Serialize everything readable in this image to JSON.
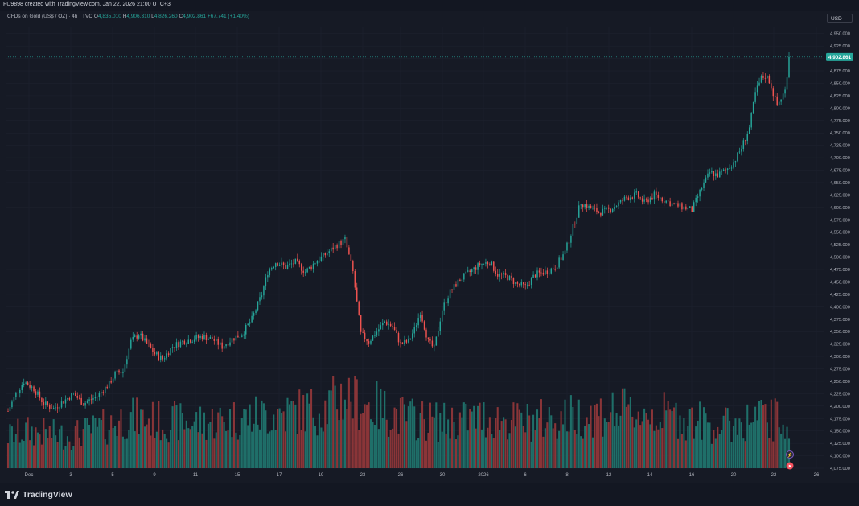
{
  "header": {
    "created_text": "FU9898 created with TradingView.com, Jan 22, 2026 21:00 UTC+3"
  },
  "legend": {
    "symbol": "CFDs on Gold (US$ / OZ) · 4h · TVC",
    "open_label": "O",
    "open": "4,835.010",
    "high_label": "H",
    "high": "4,906.310",
    "low_label": "L",
    "low": "4,826.260",
    "close_label": "C",
    "close": "4,902.861",
    "change": "+67.741 (+1.40%)"
  },
  "currency_button": "USD",
  "footer": {
    "brand": "TradingView"
  },
  "colors": {
    "up": "#26a69a",
    "down": "#ef5350",
    "vol_up": "#1f6f69",
    "vol_down": "#8a3538",
    "bg": "#161a25",
    "grid": "#1f2330",
    "axis_text": "#b2b5be"
  },
  "chart_data": {
    "type": "candlestick",
    "interval": "4h",
    "ylim": [
      4075,
      4962.5
    ],
    "y_ticks": [
      "4,950.000",
      "4,925.000",
      "4,900.000",
      "4,875.000",
      "4,850.000",
      "4,825.000",
      "4,800.000",
      "4,775.000",
      "4,750.000",
      "4,725.000",
      "4,700.000",
      "4,675.000",
      "4,650.000",
      "4,625.000",
      "4,600.000",
      "4,575.000",
      "4,550.000",
      "4,525.000",
      "4,500.000",
      "4,475.000",
      "4,450.000",
      "4,425.000",
      "4,400.000",
      "4,375.000",
      "4,350.000",
      "4,325.000",
      "4,300.000",
      "4,275.000",
      "4,250.000",
      "4,225.000",
      "4,200.000",
      "4,175.000",
      "4,150.000",
      "4,125.000",
      "4,100.000",
      "4,075.000"
    ],
    "x_ticks": [
      "Dec",
      "3",
      "5",
      "9",
      "11",
      "15",
      "17",
      "19",
      "23",
      "26",
      "30",
      "2026",
      "6",
      "8",
      "12",
      "14",
      "16",
      "20",
      "22",
      "26"
    ],
    "last_price": "4,902.861",
    "last_value": 4902.861,
    "price_keypoints": [
      [
        0,
        4190
      ],
      [
        4,
        4225
      ],
      [
        8,
        4250
      ],
      [
        13,
        4235
      ],
      [
        18,
        4205
      ],
      [
        23,
        4195
      ],
      [
        28,
        4210
      ],
      [
        33,
        4225
      ],
      [
        38,
        4205
      ],
      [
        45,
        4220
      ],
      [
        51,
        4245
      ],
      [
        54,
        4265
      ],
      [
        58,
        4270
      ],
      [
        62,
        4330
      ],
      [
        66,
        4345
      ],
      [
        70,
        4325
      ],
      [
        74,
        4305
      ],
      [
        78,
        4295
      ],
      [
        83,
        4320
      ],
      [
        88,
        4330
      ],
      [
        93,
        4335
      ],
      [
        98,
        4340
      ],
      [
        103,
        4335
      ],
      [
        108,
        4320
      ],
      [
        113,
        4335
      ],
      [
        118,
        4345
      ],
      [
        123,
        4375
      ],
      [
        128,
        4425
      ],
      [
        131,
        4470
      ],
      [
        135,
        4490
      ],
      [
        140,
        4480
      ],
      [
        145,
        4490
      ],
      [
        150,
        4470
      ],
      [
        155,
        4490
      ],
      [
        160,
        4505
      ],
      [
        166,
        4525
      ],
      [
        170,
        4535
      ],
      [
        174,
        4470
      ],
      [
        178,
        4345
      ],
      [
        182,
        4330
      ],
      [
        186,
        4350
      ],
      [
        190,
        4370
      ],
      [
        194,
        4360
      ],
      [
        198,
        4325
      ],
      [
        202,
        4330
      ],
      [
        205,
        4355
      ],
      [
        208,
        4390
      ],
      [
        212,
        4330
      ],
      [
        215,
        4315
      ],
      [
        219,
        4395
      ],
      [
        223,
        4430
      ],
      [
        228,
        4455
      ],
      [
        233,
        4470
      ],
      [
        238,
        4485
      ],
      [
        243,
        4490
      ],
      [
        247,
        4465
      ],
      [
        252,
        4460
      ],
      [
        257,
        4445
      ],
      [
        261,
        4440
      ],
      [
        266,
        4465
      ],
      [
        271,
        4470
      ],
      [
        276,
        4480
      ],
      [
        281,
        4510
      ],
      [
        285,
        4560
      ],
      [
        289,
        4610
      ],
      [
        293,
        4600
      ],
      [
        298,
        4590
      ],
      [
        303,
        4595
      ],
      [
        307,
        4605
      ],
      [
        312,
        4620
      ],
      [
        317,
        4625
      ],
      [
        321,
        4610
      ],
      [
        326,
        4625
      ],
      [
        331,
        4615
      ],
      [
        336,
        4605
      ],
      [
        341,
        4600
      ],
      [
        345,
        4595
      ],
      [
        350,
        4640
      ],
      [
        354,
        4670
      ],
      [
        358,
        4665
      ],
      [
        362,
        4675
      ],
      [
        366,
        4690
      ],
      [
        370,
        4720
      ],
      [
        374,
        4760
      ],
      [
        377,
        4830
      ],
      [
        380,
        4860
      ],
      [
        382,
        4865
      ],
      [
        384,
        4855
      ],
      [
        386,
        4830
      ],
      [
        388,
        4805
      ],
      [
        390,
        4820
      ],
      [
        392,
        4835
      ],
      [
        394,
        4902.861
      ]
    ],
    "volume_keypoints": [
      [
        0,
        0.35
      ],
      [
        10,
        0.4
      ],
      [
        30,
        0.35
      ],
      [
        50,
        0.45
      ],
      [
        60,
        0.55
      ],
      [
        80,
        0.5
      ],
      [
        100,
        0.5
      ],
      [
        120,
        0.55
      ],
      [
        140,
        0.6
      ],
      [
        160,
        0.65
      ],
      [
        170,
        0.8
      ],
      [
        180,
        0.7
      ],
      [
        200,
        0.55
      ],
      [
        220,
        0.5
      ],
      [
        240,
        0.55
      ],
      [
        260,
        0.5
      ],
      [
        280,
        0.55
      ],
      [
        300,
        0.6
      ],
      [
        320,
        0.6
      ],
      [
        340,
        0.55
      ],
      [
        360,
        0.45
      ],
      [
        380,
        0.55
      ],
      [
        394,
        0.5
      ]
    ],
    "grid": true,
    "volume_pane": true
  }
}
